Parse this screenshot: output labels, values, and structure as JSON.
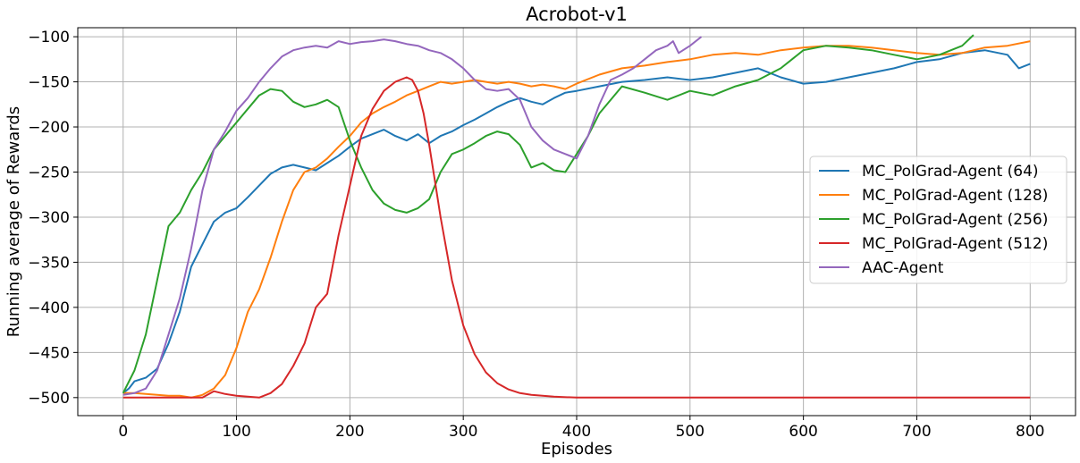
{
  "chart_data": {
    "type": "line",
    "title": "Acrobot-v1",
    "xlabel": "Episodes",
    "ylabel": "Running average of Rewards",
    "xlim": [
      -40,
      840
    ],
    "ylim": [
      -520,
      -90
    ],
    "xticks": [
      0,
      100,
      200,
      300,
      400,
      500,
      600,
      700,
      800
    ],
    "yticks": [
      -500,
      -450,
      -400,
      -350,
      -300,
      -250,
      -200,
      -150,
      -100
    ],
    "grid": true,
    "legend_position": "center-right",
    "series": [
      {
        "name": "MC_PolGrad-Agent (64)",
        "color": "#1f77b4",
        "x": [
          0,
          5,
          10,
          20,
          30,
          40,
          50,
          60,
          70,
          80,
          90,
          100,
          110,
          120,
          130,
          140,
          150,
          160,
          170,
          180,
          190,
          200,
          210,
          220,
          230,
          240,
          250,
          260,
          270,
          280,
          290,
          300,
          310,
          320,
          330,
          340,
          350,
          360,
          370,
          380,
          390,
          400,
          420,
          440,
          460,
          480,
          500,
          520,
          540,
          560,
          580,
          600,
          620,
          640,
          660,
          680,
          700,
          720,
          740,
          760,
          780,
          790,
          800
        ],
        "y": [
          -495,
          -490,
          -482,
          -478,
          -468,
          -440,
          -405,
          -355,
          -330,
          -305,
          -295,
          -290,
          -278,
          -265,
          -252,
          -245,
          -242,
          -245,
          -248,
          -240,
          -232,
          -222,
          -213,
          -208,
          -203,
          -210,
          -215,
          -208,
          -218,
          -210,
          -205,
          -198,
          -192,
          -185,
          -178,
          -172,
          -168,
          -172,
          -175,
          -168,
          -162,
          -160,
          -155,
          -150,
          -148,
          -145,
          -148,
          -145,
          -140,
          -135,
          -145,
          -152,
          -150,
          -145,
          -140,
          -135,
          -128,
          -125,
          -118,
          -115,
          -120,
          -135,
          -130
        ]
      },
      {
        "name": "MC_PolGrad-Agent (128)",
        "color": "#ff7f0e",
        "x": [
          0,
          10,
          20,
          30,
          40,
          50,
          60,
          70,
          80,
          90,
          100,
          110,
          120,
          130,
          140,
          150,
          160,
          170,
          180,
          190,
          200,
          210,
          220,
          230,
          240,
          250,
          260,
          270,
          280,
          290,
          300,
          310,
          320,
          330,
          340,
          350,
          360,
          370,
          380,
          390,
          400,
          420,
          440,
          460,
          480,
          500,
          520,
          540,
          560,
          580,
          600,
          620,
          640,
          660,
          680,
          700,
          720,
          740,
          760,
          780,
          800
        ],
        "y": [
          -495,
          -495,
          -496,
          -497,
          -498,
          -498,
          -500,
          -497,
          -490,
          -475,
          -445,
          -405,
          -380,
          -345,
          -305,
          -270,
          -250,
          -245,
          -235,
          -222,
          -210,
          -195,
          -185,
          -178,
          -172,
          -165,
          -160,
          -155,
          -150,
          -152,
          -150,
          -148,
          -150,
          -152,
          -150,
          -152,
          -155,
          -153,
          -155,
          -158,
          -152,
          -142,
          -135,
          -132,
          -128,
          -125,
          -120,
          -118,
          -120,
          -115,
          -112,
          -110,
          -110,
          -112,
          -115,
          -118,
          -120,
          -118,
          -112,
          -110,
          -105
        ]
      },
      {
        "name": "MC_PolGrad-Agent (256)",
        "color": "#2ca02c",
        "x": [
          0,
          10,
          20,
          30,
          40,
          50,
          60,
          70,
          80,
          90,
          100,
          110,
          120,
          130,
          140,
          150,
          160,
          170,
          180,
          190,
          200,
          210,
          220,
          230,
          240,
          250,
          260,
          270,
          280,
          290,
          300,
          310,
          320,
          330,
          340,
          350,
          360,
          370,
          380,
          390,
          400,
          410,
          420,
          440,
          460,
          480,
          500,
          520,
          540,
          560,
          580,
          600,
          620,
          640,
          660,
          680,
          700,
          720,
          740,
          750
        ],
        "y": [
          -495,
          -470,
          -430,
          -370,
          -310,
          -295,
          -270,
          -250,
          -225,
          -210,
          -195,
          -180,
          -165,
          -158,
          -160,
          -172,
          -178,
          -175,
          -170,
          -178,
          -215,
          -245,
          -270,
          -285,
          -292,
          -295,
          -290,
          -280,
          -250,
          -230,
          -225,
          -218,
          -210,
          -205,
          -208,
          -220,
          -245,
          -240,
          -248,
          -250,
          -230,
          -210,
          -185,
          -155,
          -162,
          -170,
          -160,
          -165,
          -155,
          -148,
          -135,
          -115,
          -110,
          -112,
          -115,
          -120,
          -125,
          -120,
          -110,
          -98
        ]
      },
      {
        "name": "MC_PolGrad-Agent (512)",
        "color": "#d62728",
        "x": [
          0,
          70,
          80,
          90,
          100,
          110,
          120,
          130,
          140,
          150,
          160,
          170,
          180,
          190,
          200,
          210,
          220,
          230,
          240,
          250,
          255,
          260,
          265,
          270,
          275,
          280,
          290,
          300,
          310,
          320,
          330,
          340,
          350,
          360,
          380,
          400,
          450,
          500,
          600,
          700,
          800
        ],
        "y": [
          -500,
          -500,
          -493,
          -496,
          -498,
          -499,
          -500,
          -495,
          -485,
          -465,
          -440,
          -400,
          -385,
          -320,
          -265,
          -210,
          -180,
          -160,
          -150,
          -145,
          -148,
          -160,
          -185,
          -220,
          -260,
          -300,
          -370,
          -420,
          -452,
          -472,
          -484,
          -491,
          -495,
          -497,
          -499,
          -500,
          -500,
          -500,
          -500,
          -500,
          -500
        ]
      },
      {
        "name": "AAC-Agent",
        "color": "#9467bd",
        "x": [
          0,
          10,
          20,
          30,
          40,
          50,
          60,
          70,
          80,
          90,
          100,
          110,
          120,
          130,
          140,
          150,
          160,
          170,
          180,
          190,
          200,
          210,
          220,
          230,
          240,
          250,
          260,
          270,
          280,
          290,
          300,
          310,
          320,
          330,
          340,
          350,
          360,
          370,
          380,
          390,
          400,
          410,
          420,
          430,
          440,
          450,
          460,
          470,
          480,
          485,
          490,
          500,
          510
        ],
        "y": [
          -497,
          -495,
          -490,
          -470,
          -430,
          -390,
          -335,
          -270,
          -225,
          -205,
          -182,
          -168,
          -150,
          -135,
          -122,
          -115,
          -112,
          -110,
          -112,
          -105,
          -108,
          -106,
          -105,
          -103,
          -105,
          -108,
          -110,
          -115,
          -118,
          -125,
          -135,
          -148,
          -158,
          -160,
          -158,
          -170,
          -200,
          -215,
          -225,
          -230,
          -235,
          -210,
          -175,
          -148,
          -142,
          -135,
          -125,
          -115,
          -110,
          -105,
          -118,
          -110,
          -100
        ]
      }
    ]
  }
}
